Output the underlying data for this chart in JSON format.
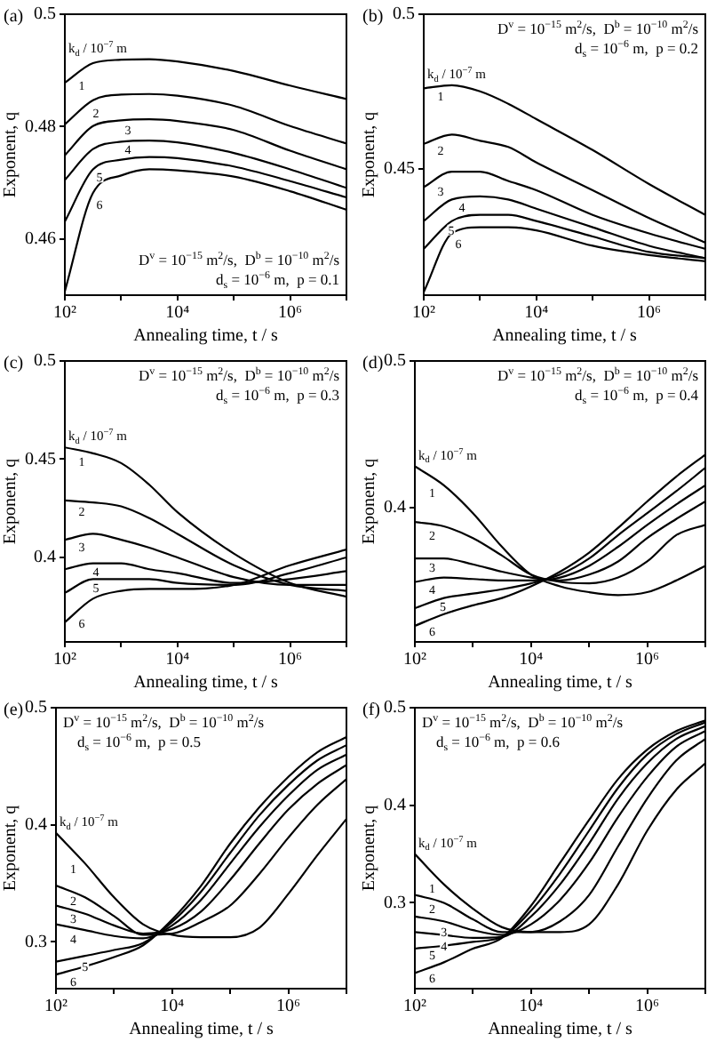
{
  "chart_data": [
    {
      "type": "line",
      "title": "(a)",
      "xlabel": "Annealing time, t / s",
      "ylabel": "Exponent, q",
      "legend_title": "k$_{d}$ / 10$^{−7}$ m",
      "annotations": [
        "D$^{v}$ = 10$^{−15}$ m$^{2}$/s,  D$^{b}$ = 10$^{−10}$ m$^{2}$/s",
        "d$_{s}$ = 10$^{−6}$ m,  p = 0.1"
      ],
      "log": "x",
      "xlim": [
        100,
        10000000
      ],
      "ylim": [
        0.45,
        0.5
      ],
      "xticks": [
        {
          "value": 100,
          "label": "10²"
        },
        {
          "value": 1000,
          "label": null
        },
        {
          "value": 10000,
          "label": "10⁴"
        },
        {
          "value": 100000,
          "label": null
        },
        {
          "value": 1000000,
          "label": "10⁶"
        },
        {
          "value": 10000000,
          "label": null
        }
      ],
      "yticks": [
        0.46,
        0.48,
        0.5
      ],
      "x": [
        100,
        316,
        1000,
        3160,
        10000,
        100000,
        1000000,
        10000000
      ],
      "series": [
        {
          "name": "1",
          "color": "#000000",
          "values": [
            0.4878,
            0.4913,
            0.4919,
            0.492,
            0.4916,
            0.4899,
            0.4873,
            0.4849
          ]
        },
        {
          "name": "2",
          "color": "#000000",
          "values": [
            0.4804,
            0.4847,
            0.4857,
            0.4858,
            0.4855,
            0.4837,
            0.4801,
            0.477
          ]
        },
        {
          "name": "3",
          "color": "#000000",
          "values": [
            0.4749,
            0.4801,
            0.4811,
            0.4813,
            0.481,
            0.4794,
            0.4757,
            0.4724
          ]
        },
        {
          "name": "4",
          "color": "#000000",
          "values": [
            0.4705,
            0.476,
            0.4773,
            0.4775,
            0.4772,
            0.4753,
            0.4724,
            0.4691
          ]
        },
        {
          "name": "5",
          "color": "#000000",
          "values": [
            0.4631,
            0.4724,
            0.4741,
            0.4746,
            0.4744,
            0.4729,
            0.4703,
            0.4674
          ]
        },
        {
          "name": "6",
          "color": "#000000",
          "values": [
            0.4507,
            0.4682,
            0.4713,
            0.4724,
            0.4722,
            0.4711,
            0.4685,
            0.4652
          ]
        }
      ]
    },
    {
      "type": "line",
      "title": "(b)",
      "xlabel": "Annealing time, t / s",
      "ylabel": "Exponent, q",
      "legend_title": "k$_{d}$ / 10$^{−7}$ m",
      "annotations": [
        "D$^{v}$ = 10$^{−15}$ m$^{2}$/s,  D$^{b}$ = 10$^{−10}$ m$^{2}$/s",
        "d$_{s}$ = 10$^{−6}$ m,  p = 0.2"
      ],
      "log": "x",
      "xlim": [
        100,
        10000000
      ],
      "ylim": [
        0.409,
        0.5
      ],
      "xticks": [
        {
          "value": 100,
          "label": "10²"
        },
        {
          "value": 1000,
          "label": null
        },
        {
          "value": 10000,
          "label": "10⁴"
        },
        {
          "value": 100000,
          "label": null
        },
        {
          "value": 1000000,
          "label": "10⁶"
        },
        {
          "value": 10000000,
          "label": null
        }
      ],
      "yticks": [
        0.45,
        0.5
      ],
      "x": [
        100,
        316,
        1000,
        3160,
        10000,
        100000,
        1000000,
        10000000
      ],
      "series": [
        {
          "name": "1",
          "color": "#000000",
          "values": [
            0.476,
            0.477,
            0.475,
            0.471,
            0.466,
            0.456,
            0.445,
            0.435
          ]
        },
        {
          "name": "2",
          "color": "#000000",
          "values": [
            0.458,
            0.461,
            0.459,
            0.457,
            0.452,
            0.443,
            0.434,
            0.426
          ]
        },
        {
          "name": "3",
          "color": "#000000",
          "values": [
            0.444,
            0.449,
            0.449,
            0.446,
            0.443,
            0.435,
            0.429,
            0.424
          ]
        },
        {
          "name": "4",
          "color": "#000000",
          "values": [
            0.433,
            0.44,
            0.441,
            0.44,
            0.437,
            0.431,
            0.425,
            0.421
          ]
        },
        {
          "name": "5",
          "color": "#000000",
          "values": [
            0.424,
            0.433,
            0.435,
            0.435,
            0.433,
            0.428,
            0.423,
            0.421
          ]
        },
        {
          "name": "6",
          "color": "#000000",
          "values": [
            0.41,
            0.429,
            0.431,
            0.431,
            0.43,
            0.425,
            0.422,
            0.42
          ]
        }
      ]
    },
    {
      "type": "line",
      "title": "(c)",
      "xlabel": "Annealing time, t / s",
      "ylabel": "Exponent, q",
      "legend_title": "k$_{d}$ / 10$^{−7}$ m",
      "annotations": [
        "D$^{v}$ = 10$^{−15}$ m$^{2}$/s,  D$^{b}$ = 10$^{−10}$ m$^{2}$/s",
        "d$_{s}$ = 10$^{−6}$ m,  p = 0.3"
      ],
      "log": "x",
      "xlim": [
        100,
        10000000
      ],
      "ylim": [
        0.357,
        0.5
      ],
      "xticks": [
        {
          "value": 100,
          "label": "10²"
        },
        {
          "value": 1000,
          "label": null
        },
        {
          "value": 10000,
          "label": "10⁴"
        },
        {
          "value": 100000,
          "label": null
        },
        {
          "value": 1000000,
          "label": "10⁶"
        },
        {
          "value": 10000000,
          "label": null
        }
      ],
      "yticks": [
        0.4,
        0.45,
        0.5
      ],
      "x": [
        100,
        316,
        1000,
        3160,
        10000,
        100000,
        1000000,
        10000000
      ],
      "series": [
        {
          "name": "1",
          "color": "#000000",
          "values": [
            0.456,
            0.453,
            0.448,
            0.437,
            0.423,
            0.402,
            0.387,
            0.38
          ]
        },
        {
          "name": "2",
          "color": "#000000",
          "values": [
            0.429,
            0.428,
            0.426,
            0.42,
            0.412,
            0.396,
            0.386,
            0.383
          ]
        },
        {
          "name": "3",
          "color": "#000000",
          "values": [
            0.409,
            0.412,
            0.409,
            0.405,
            0.4,
            0.39,
            0.386,
            0.386
          ]
        },
        {
          "name": "4",
          "color": "#000000",
          "values": [
            0.394,
            0.397,
            0.397,
            0.394,
            0.392,
            0.387,
            0.389,
            0.393
          ]
        },
        {
          "name": "5",
          "color": "#000000",
          "values": [
            0.382,
            0.389,
            0.389,
            0.389,
            0.387,
            0.386,
            0.392,
            0.4
          ]
        },
        {
          "name": "6",
          "color": "#000000",
          "values": [
            0.367,
            0.379,
            0.383,
            0.384,
            0.384,
            0.386,
            0.396,
            0.404
          ]
        }
      ]
    },
    {
      "type": "line",
      "title": "(d)",
      "xlabel": "Annealing time, t / s",
      "ylabel": "Exponent, q",
      "legend_title": "k$_{d}$ / 10$^{−7}$ m",
      "annotations": [
        "D$^{v}$ = 10$^{−15}$ m$^{2}$/s,  D$^{b}$ = 10$^{−10}$ m$^{2}$/s",
        "d$_{s}$ = 10$^{−6}$ m,  p = 0.4"
      ],
      "log": "x",
      "xlim": [
        100,
        10000000
      ],
      "ylim": [
        0.308,
        0.5
      ],
      "xticks": [
        {
          "value": 100,
          "label": "10²"
        },
        {
          "value": 1000,
          "label": null
        },
        {
          "value": 10000,
          "label": "10⁴"
        },
        {
          "value": 100000,
          "label": null
        },
        {
          "value": 1000000,
          "label": "10⁶"
        },
        {
          "value": 10000000,
          "label": null
        }
      ],
      "yticks": [
        0.4,
        0.5
      ],
      "x": [
        100,
        316,
        1000,
        3160,
        10000,
        31600,
        100000,
        316000,
        1000000,
        3160000,
        10000000
      ],
      "series": [
        {
          "name": "1",
          "color": "#000000",
          "values": [
            0.428,
            0.415,
            0.396,
            0.373,
            0.354,
            0.346,
            0.342,
            0.34,
            0.342,
            0.35,
            0.36
          ]
        },
        {
          "name": "2",
          "color": "#000000",
          "values": [
            0.39,
            0.387,
            0.379,
            0.367,
            0.354,
            0.349,
            0.348,
            0.352,
            0.363,
            0.381,
            0.388
          ]
        },
        {
          "name": "3",
          "color": "#000000",
          "values": [
            0.365,
            0.365,
            0.361,
            0.356,
            0.352,
            0.35,
            0.354,
            0.363,
            0.379,
            0.392,
            0.404
          ]
        },
        {
          "name": "4",
          "color": "#000000",
          "values": [
            0.349,
            0.352,
            0.351,
            0.35,
            0.35,
            0.352,
            0.36,
            0.373,
            0.388,
            0.402,
            0.415
          ]
        },
        {
          "name": "5",
          "color": "#000000",
          "values": [
            0.331,
            0.338,
            0.341,
            0.344,
            0.348,
            0.354,
            0.365,
            0.381,
            0.396,
            0.411,
            0.427
          ]
        },
        {
          "name": "6",
          "color": "#000000",
          "values": [
            0.319,
            0.327,
            0.333,
            0.338,
            0.346,
            0.356,
            0.369,
            0.386,
            0.404,
            0.421,
            0.436
          ]
        }
      ]
    },
    {
      "type": "line",
      "title": "(e)",
      "xlabel": "Annealing time, t / s",
      "ylabel": "Exponent, q",
      "legend_title": "k$_{d}$ / 10$^{−7}$ m",
      "annotations": [
        "D$^{v}$ = 10$^{−15}$ m$^{2}$/s,  D$^{b}$ = 10$^{−10}$ m$^{2}$/s",
        "d$_{s}$ = 10$^{−6}$ m,  p = 0.5"
      ],
      "log": "x",
      "xlim": [
        100,
        10000000
      ],
      "ylim": [
        0.26,
        0.5
      ],
      "xticks": [
        {
          "value": 100,
          "label": "10²"
        },
        {
          "value": 1000,
          "label": null
        },
        {
          "value": 10000,
          "label": "10⁴"
        },
        {
          "value": 100000,
          "label": null
        },
        {
          "value": 1000000,
          "label": "10⁶"
        },
        {
          "value": 10000000,
          "label": null
        }
      ],
      "yticks": [
        0.3,
        0.4,
        0.5
      ],
      "x": [
        100,
        316,
        1000,
        3160,
        10000,
        31600,
        100000,
        316000,
        1000000,
        3160000,
        10000000
      ],
      "series": [
        {
          "name": "1",
          "color": "#000000",
          "values": [
            0.393,
            0.367,
            0.338,
            0.315,
            0.306,
            0.304,
            0.304,
            0.312,
            0.341,
            0.374,
            0.405
          ]
        },
        {
          "name": "2",
          "color": "#000000",
          "values": [
            0.348,
            0.338,
            0.322,
            0.306,
            0.307,
            0.317,
            0.331,
            0.358,
            0.389,
            0.417,
            0.439
          ]
        },
        {
          "name": "3",
          "color": "#000000",
          "values": [
            0.331,
            0.324,
            0.314,
            0.307,
            0.311,
            0.326,
            0.353,
            0.384,
            0.413,
            0.435,
            0.451
          ]
        },
        {
          "name": "4",
          "color": "#000000",
          "values": [
            0.315,
            0.31,
            0.305,
            0.303,
            0.314,
            0.336,
            0.367,
            0.398,
            0.425,
            0.447,
            0.46
          ]
        },
        {
          "name": "5",
          "color": "#000000",
          "values": [
            0.283,
            0.288,
            0.293,
            0.299,
            0.317,
            0.343,
            0.376,
            0.408,
            0.434,
            0.455,
            0.468
          ]
        },
        {
          "name": "6",
          "color": "#000000",
          "values": [
            0.272,
            0.279,
            0.287,
            0.297,
            0.319,
            0.348,
            0.384,
            0.415,
            0.441,
            0.462,
            0.475
          ]
        }
      ]
    },
    {
      "type": "line",
      "title": "(f)",
      "xlabel": "Annealing time, t / s",
      "ylabel": "Exponent, q",
      "legend_title": "k$_{d}$ / 10$^{−7}$ m",
      "annotations": [
        "D$^{v}$ = 10$^{−15}$ m$^{2}$/s,  D$^{b}$ = 10$^{−10}$ m$^{2}$/s",
        "d$_{s}$ = 10$^{−6}$ m,  p = 0.6"
      ],
      "log": "x",
      "xlim": [
        100,
        10000000
      ],
      "ylim": [
        0.212,
        0.5
      ],
      "xticks": [
        {
          "value": 100,
          "label": "10²"
        },
        {
          "value": 1000,
          "label": null
        },
        {
          "value": 10000,
          "label": "10⁴"
        },
        {
          "value": 100000,
          "label": null
        },
        {
          "value": 1000000,
          "label": "10⁶"
        },
        {
          "value": 10000000,
          "label": null
        }
      ],
      "yticks": [
        0.3,
        0.4,
        0.5
      ],
      "x": [
        100,
        316,
        1000,
        3160,
        10000,
        31600,
        100000,
        316000,
        1000000,
        3160000,
        10000000
      ],
      "series": [
        {
          "name": "1",
          "color": "#000000",
          "values": [
            0.35,
            0.319,
            0.294,
            0.275,
            0.27,
            0.27,
            0.278,
            0.319,
            0.374,
            0.416,
            0.443
          ]
        },
        {
          "name": "2",
          "color": "#000000",
          "values": [
            0.308,
            0.3,
            0.283,
            0.27,
            0.27,
            0.281,
            0.308,
            0.358,
            0.407,
            0.446,
            0.468
          ]
        },
        {
          "name": "3",
          "color": "#000000",
          "values": [
            0.286,
            0.281,
            0.272,
            0.267,
            0.278,
            0.303,
            0.341,
            0.388,
            0.429,
            0.46,
            0.476
          ]
        },
        {
          "name": "4",
          "color": "#000000",
          "values": [
            0.27,
            0.267,
            0.264,
            0.265,
            0.286,
            0.319,
            0.361,
            0.407,
            0.443,
            0.468,
            0.481
          ]
        },
        {
          "name": "5",
          "color": "#000000",
          "values": [
            0.253,
            0.256,
            0.26,
            0.265,
            0.292,
            0.33,
            0.374,
            0.418,
            0.452,
            0.473,
            0.485
          ]
        },
        {
          "name": "6",
          "color": "#000000",
          "values": [
            0.228,
            0.239,
            0.253,
            0.264,
            0.297,
            0.341,
            0.385,
            0.427,
            0.457,
            0.476,
            0.487
          ]
        }
      ]
    }
  ]
}
